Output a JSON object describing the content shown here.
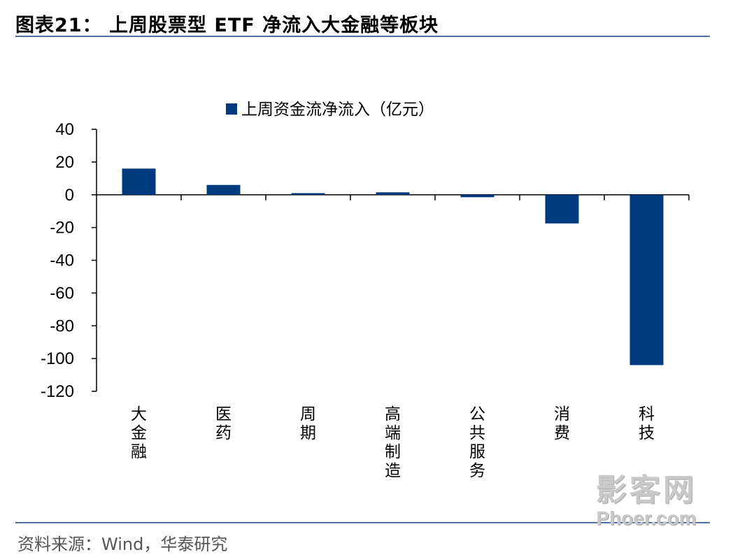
{
  "title": "图表21：  上周股票型 ETF 净流入大金融等板块",
  "source": "资料来源：Wind，华泰研究",
  "watermark": {
    "cn": "影客网",
    "en": "Phoer.com"
  },
  "colors": {
    "bar": "#003A7E",
    "rule": "#4F6FA6",
    "axis": "#000000"
  },
  "chart_data": {
    "type": "bar",
    "legend": "上周资金流净流入（亿元）",
    "legend_position": "top",
    "categories": [
      "大金融",
      "医药",
      "周期",
      "高端制造",
      "公共服务",
      "消费",
      "科技"
    ],
    "series": [
      {
        "name": "上周资金流净流入（亿元）",
        "values": [
          16,
          6,
          1,
          1.5,
          -1.5,
          -17.5,
          -104
        ]
      }
    ],
    "ylim": [
      -120,
      40
    ],
    "yticks": [
      40,
      20,
      0,
      -20,
      -40,
      -60,
      -80,
      -100,
      -120
    ],
    "ytick_labels": [
      "40",
      "20",
      "0",
      "-20",
      "-40",
      "-60",
      "-80",
      "-100",
      "-120"
    ],
    "xlabel": "",
    "ylabel": "",
    "grid": false
  }
}
